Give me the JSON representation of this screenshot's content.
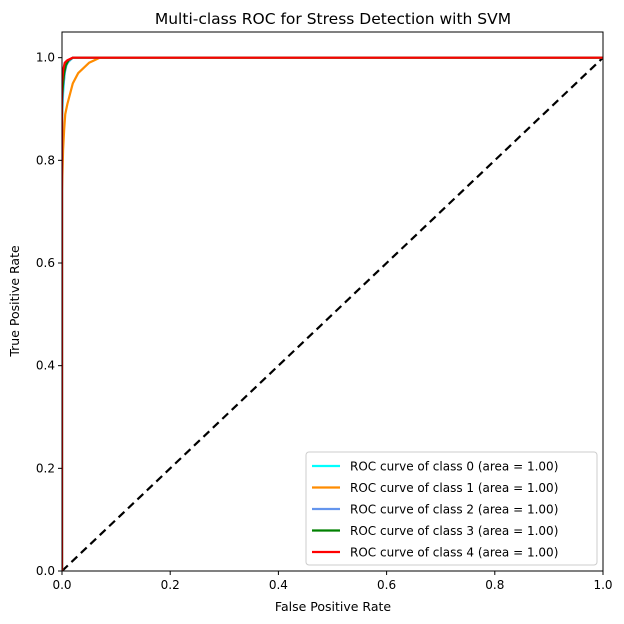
{
  "chart_data": {
    "type": "line",
    "title": "Multi-class ROC for Stress Detection with SVM",
    "xlabel": "False Positive Rate",
    "ylabel": "True Positive Rate",
    "xlim": [
      0.0,
      1.0
    ],
    "ylim": [
      0.0,
      1.05
    ],
    "xticks": [
      "0.0",
      "0.2",
      "0.4",
      "0.6",
      "0.8",
      "1.0"
    ],
    "yticks": [
      "0.0",
      "0.2",
      "0.4",
      "0.6",
      "0.8",
      "1.0"
    ],
    "grid": false,
    "legend_position": "lower-right",
    "series": [
      {
        "name": "ROC curve of class 0 (area = 1.00)",
        "color": "#00ffff",
        "points": [
          [
            0,
            0
          ],
          [
            0,
            0.88
          ],
          [
            0.002,
            0.93
          ],
          [
            0.004,
            0.96
          ],
          [
            0.006,
            0.98
          ],
          [
            0.01,
            0.99
          ],
          [
            0.015,
            0.995
          ],
          [
            0.02,
            1.0
          ],
          [
            1,
            1.0
          ]
        ]
      },
      {
        "name": "ROC curve of class 1 (area = 1.00)",
        "color": "#ff8c00",
        "points": [
          [
            0,
            0
          ],
          [
            0,
            0.74
          ],
          [
            0.002,
            0.82
          ],
          [
            0.004,
            0.86
          ],
          [
            0.006,
            0.89
          ],
          [
            0.01,
            0.91
          ],
          [
            0.015,
            0.93
          ],
          [
            0.02,
            0.95
          ],
          [
            0.025,
            0.96
          ],
          [
            0.03,
            0.97
          ],
          [
            0.04,
            0.98
          ],
          [
            0.05,
            0.99
          ],
          [
            0.06,
            0.995
          ],
          [
            0.07,
            1.0
          ],
          [
            1,
            1.0
          ]
        ]
      },
      {
        "name": "ROC curve of class 2 (area = 1.00)",
        "color": "#6495ed",
        "points": [
          [
            0,
            0
          ],
          [
            0,
            0.9
          ],
          [
            0.002,
            0.94
          ],
          [
            0.005,
            0.97
          ],
          [
            0.008,
            0.985
          ],
          [
            0.012,
            0.993
          ],
          [
            0.02,
            1.0
          ],
          [
            1,
            1.0
          ]
        ]
      },
      {
        "name": "ROC curve of class 3 (area = 1.00)",
        "color": "#008000",
        "points": [
          [
            0,
            0
          ],
          [
            0,
            0.92
          ],
          [
            0.002,
            0.95
          ],
          [
            0.004,
            0.97
          ],
          [
            0.007,
            0.985
          ],
          [
            0.012,
            0.995
          ],
          [
            0.02,
            1.0
          ],
          [
            1,
            1.0
          ]
        ]
      },
      {
        "name": "ROC curve of class 4 (area = 1.00)",
        "color": "#ff0000",
        "points": [
          [
            0,
            0
          ],
          [
            0,
            0.95
          ],
          [
            0.002,
            0.975
          ],
          [
            0.005,
            0.99
          ],
          [
            0.01,
            0.995
          ],
          [
            0.02,
            1.0
          ],
          [
            1,
            1.0
          ]
        ]
      }
    ],
    "reference_line": {
      "color": "#000000",
      "style": "dashed",
      "points": [
        [
          0,
          0
        ],
        [
          1,
          1
        ]
      ]
    }
  }
}
